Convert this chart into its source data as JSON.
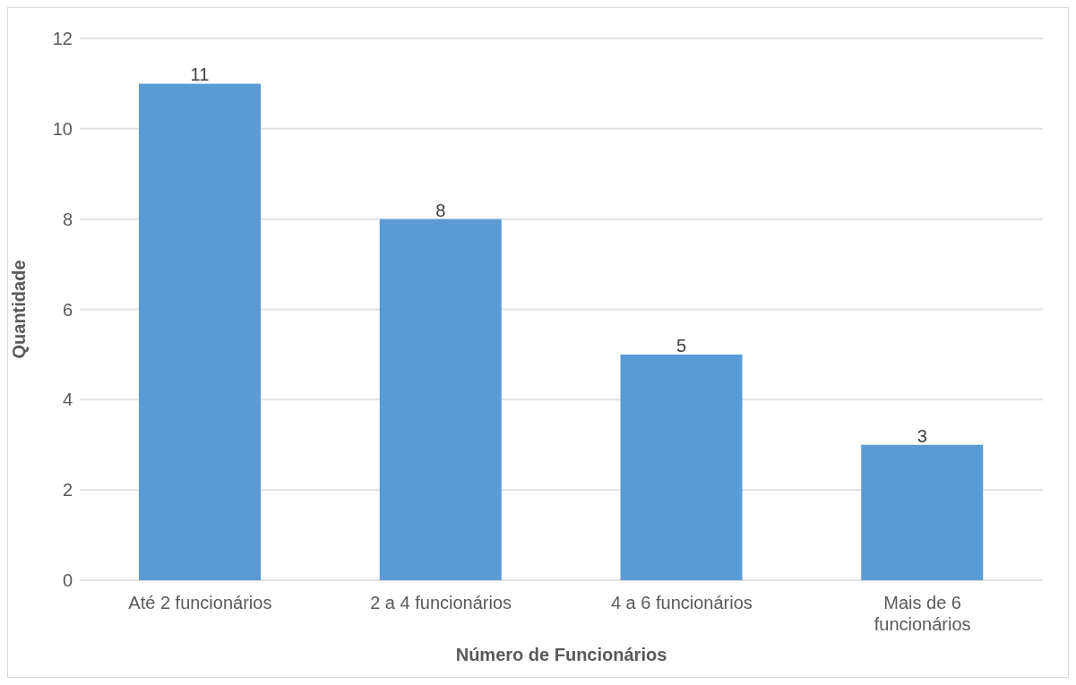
{
  "chart_data": {
    "type": "bar",
    "xlabel": "Número de Funcionários",
    "ylabel": "Quantidade",
    "categories": [
      "Até 2 funcionários",
      "2 a 4 funcionários",
      "4 a 6 funcionários",
      "Mais de 6 funcionários"
    ],
    "values": [
      11,
      8,
      5,
      3
    ],
    "color": "#5b9bd5",
    "ylim": [
      0,
      12
    ],
    "yticks": [
      0,
      2,
      4,
      6,
      8,
      10,
      12
    ],
    "grid": "y",
    "data_labels": true
  }
}
